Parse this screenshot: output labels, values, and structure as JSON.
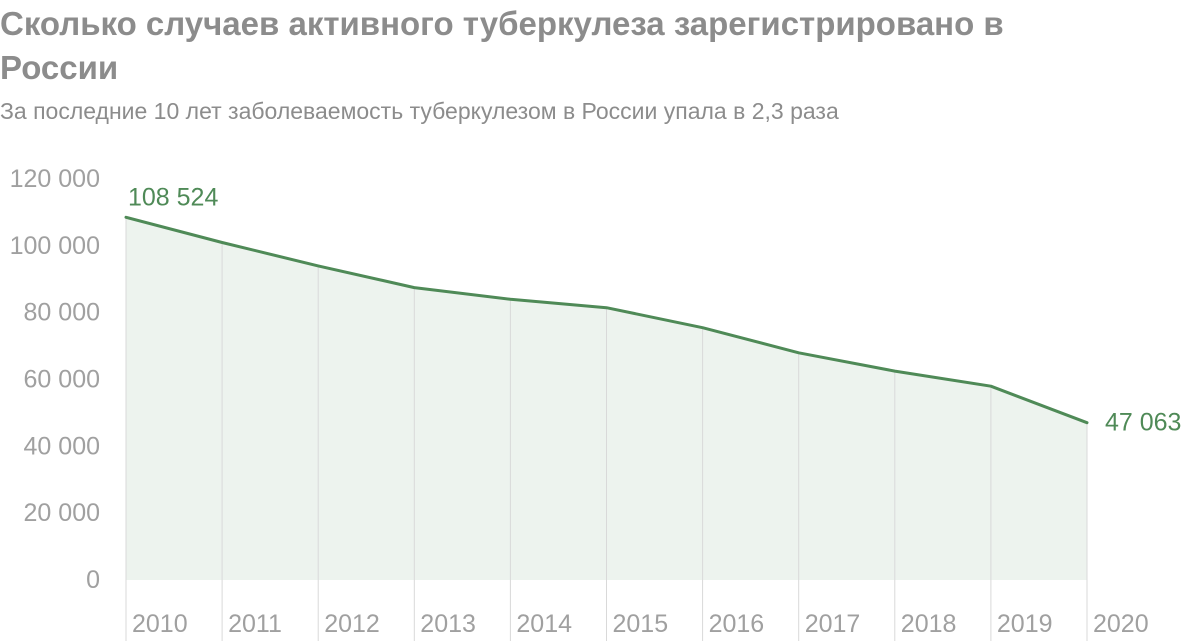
{
  "title": "Сколько случаев активного туберкулеза зарегистрировано в России",
  "subtitle": "За последние 10 лет заболеваемость туберкулезом в России упала в 2,3 раза",
  "colors": {
    "line": "#4f8a57",
    "area": "#edf3ee",
    "gridline": "#d9d9d9",
    "tick_text": "#a0a0a0",
    "title_text": "#8c8c8c"
  },
  "chart_data": {
    "type": "area",
    "title": "Сколько случаев активного туберкулеза зарегистрировано в России",
    "subtitle": "За последние 10 лет заболеваемость туберкулезом в России упала в 2,3 раза",
    "categories": [
      "2010",
      "2011",
      "2012",
      "2013",
      "2014",
      "2015",
      "2016",
      "2017",
      "2018",
      "2019",
      "2020"
    ],
    "values": [
      108524,
      101000,
      94000,
      87500,
      84000,
      81500,
      75500,
      68000,
      62500,
      58000,
      47063
    ],
    "ylim": [
      0,
      120000
    ],
    "yticks": [
      0,
      20000,
      40000,
      60000,
      80000,
      100000,
      120000
    ],
    "ytick_labels": [
      "0",
      "20 000",
      "40 000",
      "60 000",
      "80 000",
      "100 000",
      "120 000"
    ],
    "annotations": [
      {
        "index": 0,
        "label": "108 524"
      },
      {
        "index": 10,
        "label": "47 063"
      }
    ],
    "xlabel": "",
    "ylabel": "",
    "grid": "vertical"
  }
}
